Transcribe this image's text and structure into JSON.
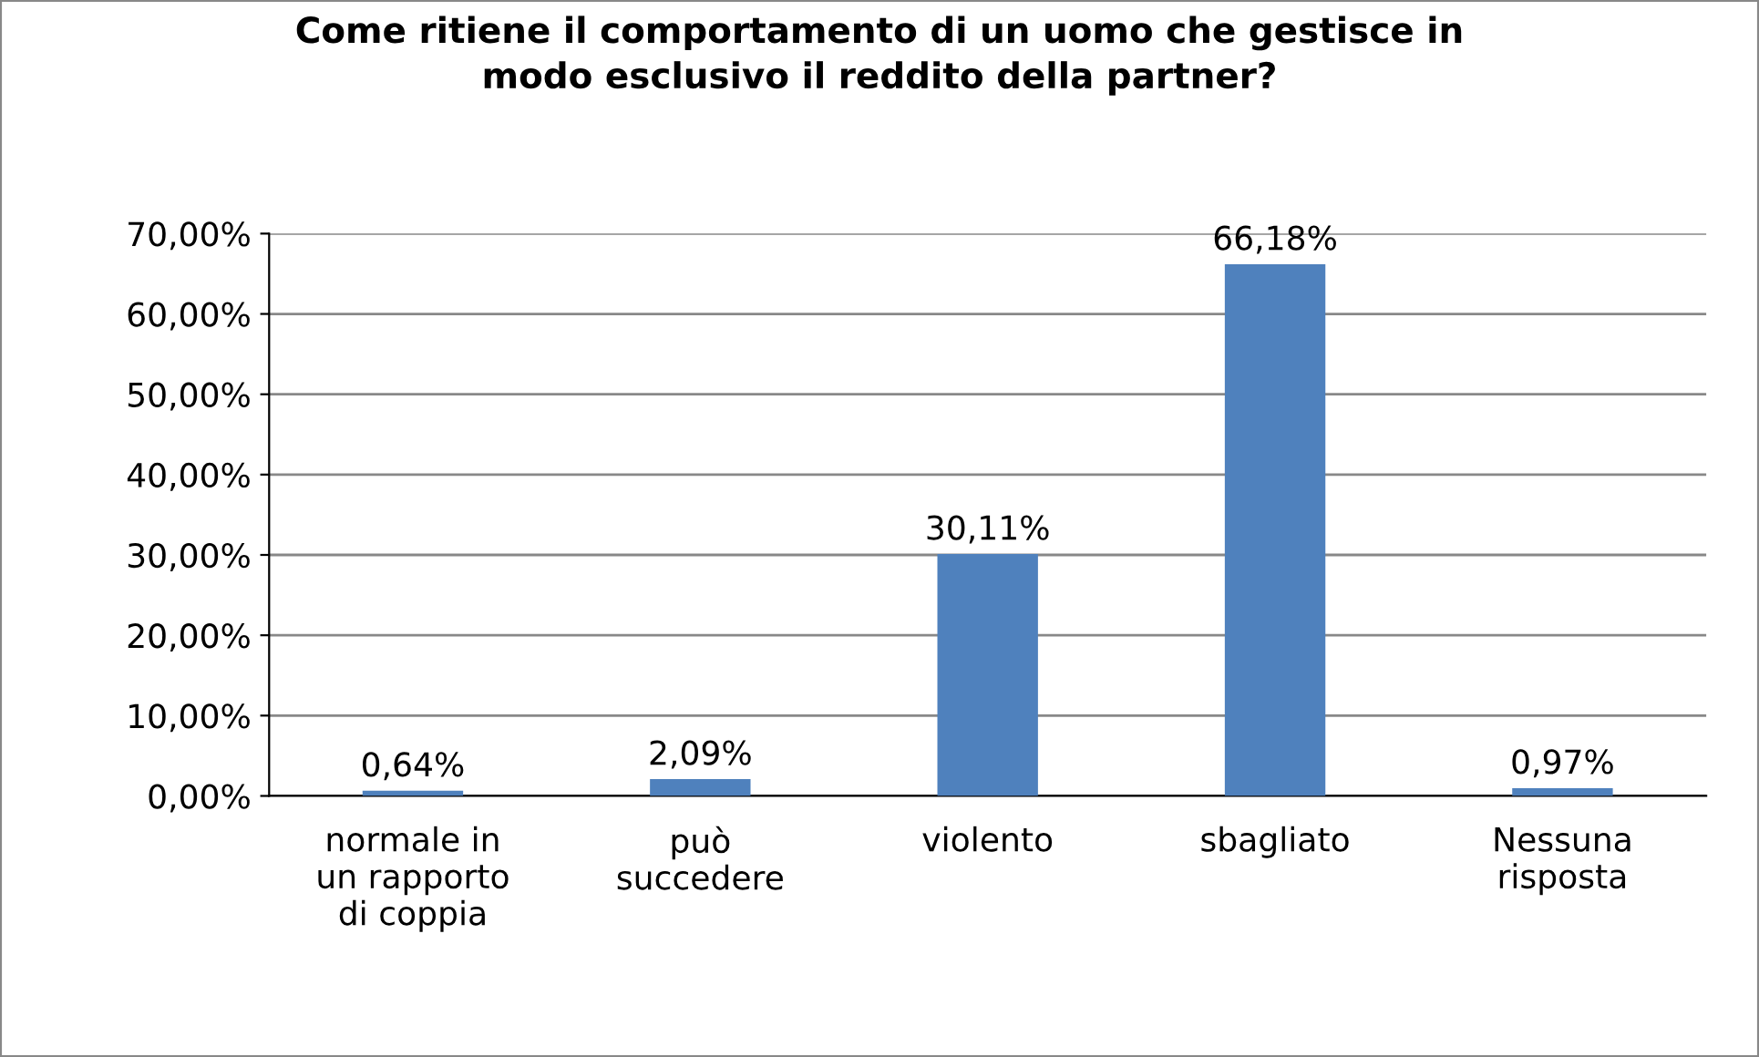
{
  "chart_data": {
    "type": "bar",
    "title": "Come ritiene il comportamento di un uomo che gestisce in\nmodo esclusivo il reddito della partner?",
    "categories": [
      "normale in\nun rapporto\ndi coppia",
      "può\nsuccedere",
      "violento",
      "sbagliato",
      "Nessuna\nrisposta"
    ],
    "values": [
      0.64,
      2.09,
      30.11,
      66.18,
      0.97
    ],
    "value_labels": [
      "0,64%",
      "2,09%",
      "30,11%",
      "66,18%",
      "0,97%"
    ],
    "color": "#4f81bd",
    "ylim": [
      0,
      70
    ],
    "yticks": [
      {
        "value": 0,
        "label": "0,00%"
      },
      {
        "value": 10,
        "label": "10,00%"
      },
      {
        "value": 20,
        "label": "20,00%"
      },
      {
        "value": 30,
        "label": "30,00%"
      },
      {
        "value": 40,
        "label": "40,00%"
      },
      {
        "value": 50,
        "label": "50,00%"
      },
      {
        "value": 60,
        "label": "60,00%"
      },
      {
        "value": 70,
        "label": "70,00%"
      }
    ],
    "grid": "y",
    "legend": false
  }
}
